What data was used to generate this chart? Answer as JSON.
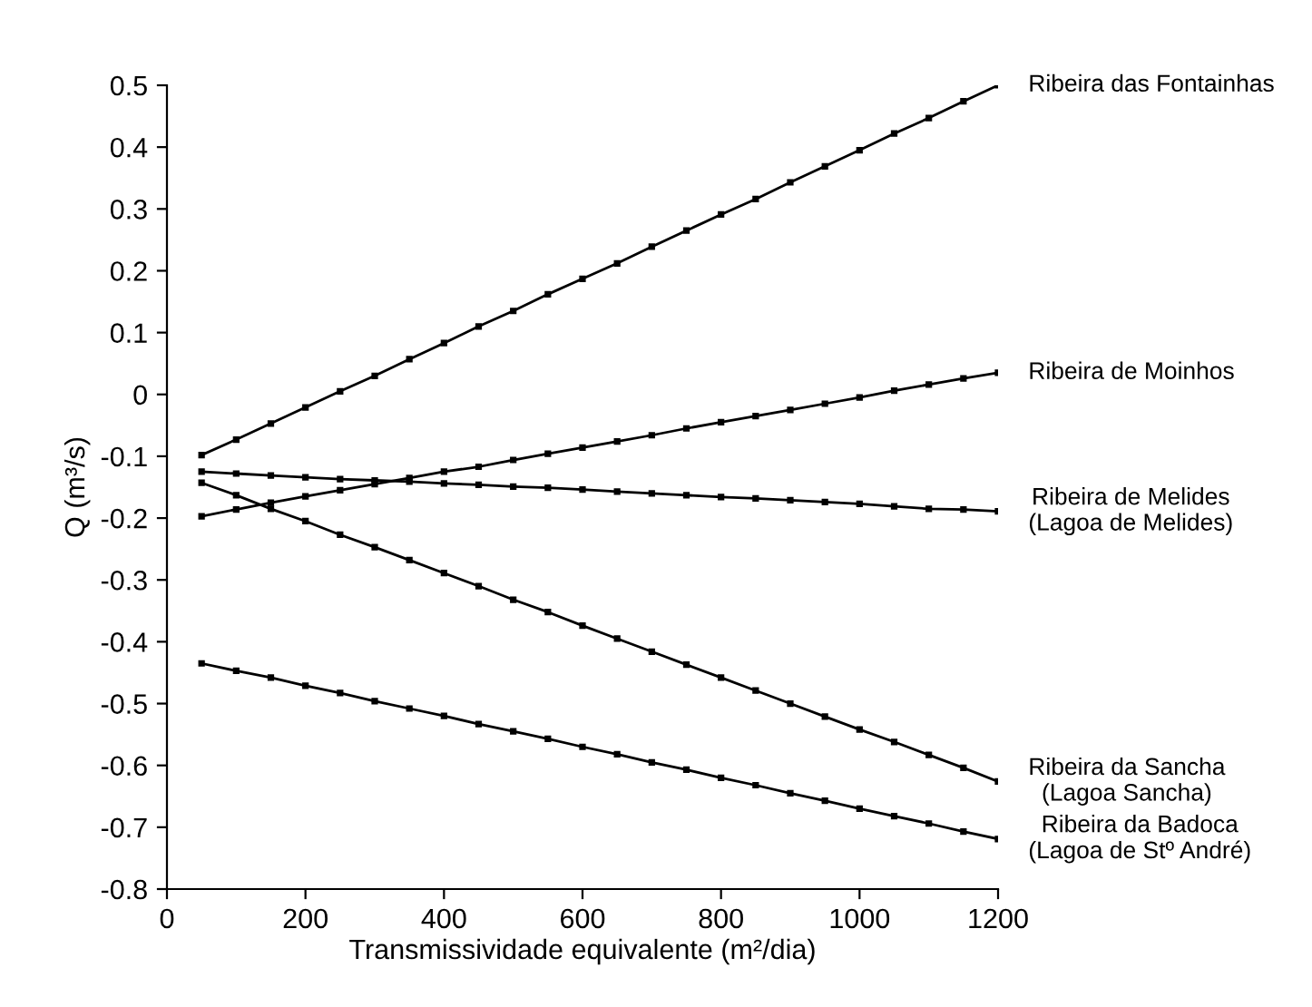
{
  "chart_data": {
    "type": "line",
    "xlabel": "Transmissividade equivalente (m²/dia)",
    "ylabel": "Q (m³/s)",
    "x": [
      50,
      100,
      150,
      200,
      250,
      300,
      350,
      400,
      450,
      500,
      550,
      600,
      650,
      700,
      750,
      800,
      850,
      900,
      950,
      1000,
      1050,
      1100,
      1150,
      1200
    ],
    "series": [
      {
        "name": "Ribeira das Fontainhas",
        "color": "#000000",
        "values": [
          -0.098,
          -0.073,
          -0.047,
          -0.021,
          0.005,
          0.03,
          0.057,
          0.083,
          0.11,
          0.135,
          0.162,
          0.187,
          0.212,
          0.239,
          0.265,
          0.291,
          0.316,
          0.343,
          0.369,
          0.395,
          0.422,
          0.447,
          0.474,
          0.5
        ]
      },
      {
        "name": "Ribeira de Moinhos",
        "color": "#000000",
        "values": [
          -0.197,
          -0.186,
          -0.175,
          -0.165,
          -0.155,
          -0.145,
          -0.135,
          -0.125,
          -0.117,
          -0.106,
          -0.096,
          -0.086,
          -0.076,
          -0.066,
          -0.055,
          -0.045,
          -0.035,
          -0.025,
          -0.015,
          -0.005,
          0.006,
          0.016,
          0.026,
          0.035
        ]
      },
      {
        "name": "Ribeira de Melides\n(Lagoa de Melides)",
        "color": "#000000",
        "values": [
          -0.125,
          -0.128,
          -0.131,
          -0.134,
          -0.137,
          -0.139,
          -0.141,
          -0.144,
          -0.146,
          -0.149,
          -0.151,
          -0.154,
          -0.157,
          -0.16,
          -0.163,
          -0.166,
          -0.168,
          -0.171,
          -0.174,
          -0.177,
          -0.181,
          -0.185,
          -0.186,
          -0.189
        ]
      },
      {
        "name": "Ribeira da Sancha\n(Lagoa Sancha)",
        "color": "#000000",
        "values": [
          -0.143,
          -0.163,
          -0.185,
          -0.205,
          -0.227,
          -0.247,
          -0.268,
          -0.289,
          -0.31,
          -0.332,
          -0.352,
          -0.374,
          -0.395,
          -0.416,
          -0.437,
          -0.458,
          -0.479,
          -0.5,
          -0.521,
          -0.542,
          -0.562,
          -0.583,
          -0.604,
          -0.626
        ]
      },
      {
        "name": "Ribeira da Badoca\n(Lagoa de Stº André)",
        "color": "#000000",
        "values": [
          -0.435,
          -0.447,
          -0.458,
          -0.471,
          -0.483,
          -0.496,
          -0.508,
          -0.52,
          -0.533,
          -0.545,
          -0.557,
          -0.57,
          -0.582,
          -0.595,
          -0.607,
          -0.62,
          -0.632,
          -0.645,
          -0.657,
          -0.67,
          -0.682,
          -0.694,
          -0.707,
          -0.719
        ]
      }
    ],
    "xlim": [
      0,
      1200
    ],
    "xticks": [
      0,
      200,
      400,
      600,
      800,
      1000,
      1200
    ],
    "ylim": [
      -0.8,
      0.5
    ],
    "yticks": [
      {
        "value": -0.8,
        "label": "-0.8"
      },
      {
        "value": -0.7,
        "label": "-0.7"
      },
      {
        "value": -0.6,
        "label": "-0.6"
      },
      {
        "value": -0.5,
        "label": "-0.5"
      },
      {
        "value": -0.4,
        "label": "-0.4"
      },
      {
        "value": -0.3,
        "label": "-0.3"
      },
      {
        "value": -0.2,
        "label": "-0.2"
      },
      {
        "value": -0.1,
        "label": "-0.1"
      },
      {
        "value": 0,
        "label": "0"
      },
      {
        "value": 0.1,
        "label": "0.1"
      },
      {
        "value": 0.2,
        "label": "0.2"
      },
      {
        "value": 0.3,
        "label": "0.3"
      },
      {
        "value": 0.4,
        "label": "0.4"
      },
      {
        "value": 0.5,
        "label": "0.5"
      }
    ],
    "marker": "square",
    "line_style": "solid",
    "grid": false,
    "legend": false
  }
}
